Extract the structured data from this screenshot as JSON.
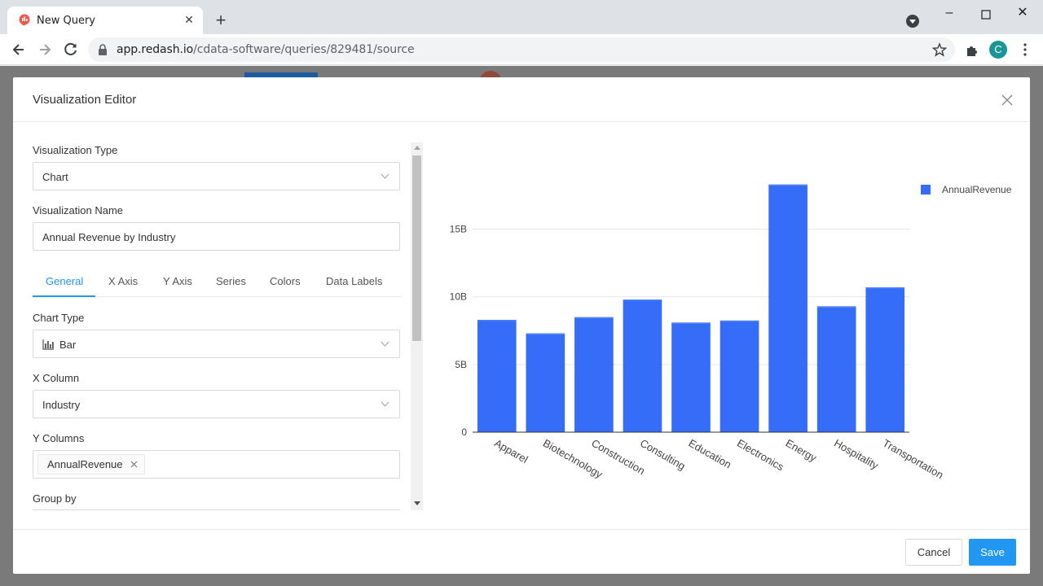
{
  "browser": {
    "tab_title": "New Query",
    "url_host": "app.redash.io",
    "url_path": "/cdata-software/queries/829481/source",
    "profile_initial": "C"
  },
  "modal": {
    "title": "Visualization Editor",
    "fields": {
      "viz_type_label": "Visualization Type",
      "viz_type_value": "Chart",
      "viz_name_label": "Visualization Name",
      "viz_name_value": "Annual Revenue by Industry",
      "chart_type_label": "Chart Type",
      "chart_type_value": "Bar",
      "x_column_label": "X Column",
      "x_column_value": "Industry",
      "y_columns_label": "Y Columns",
      "y_columns_tag": "AnnualRevenue",
      "group_by_label": "Group by"
    },
    "tabs": [
      "General",
      "X Axis",
      "Y Axis",
      "Series",
      "Colors",
      "Data Labels"
    ],
    "active_tab": "General",
    "cancel_label": "Cancel",
    "save_label": "Save"
  },
  "chart_data": {
    "type": "bar",
    "categories": [
      "Apparel",
      "Biotechnology",
      "Construction",
      "Consulting",
      "Education",
      "Electronics",
      "Energy",
      "Hospitality",
      "Transportation"
    ],
    "series": [
      {
        "name": "AnnualRevenue",
        "color": "#356cf8",
        "values": [
          8300000000,
          7300000000,
          8500000000,
          9800000000,
          8100000000,
          8250000000,
          18300000000,
          9300000000,
          10700000000
        ]
      }
    ],
    "yticks": [
      0,
      5000000000,
      10000000000,
      15000000000
    ],
    "ytick_labels": [
      "0",
      "5B",
      "10B",
      "15B"
    ],
    "ylim": [
      0,
      19000000000
    ],
    "legend_position": "top-right",
    "grid": true
  }
}
